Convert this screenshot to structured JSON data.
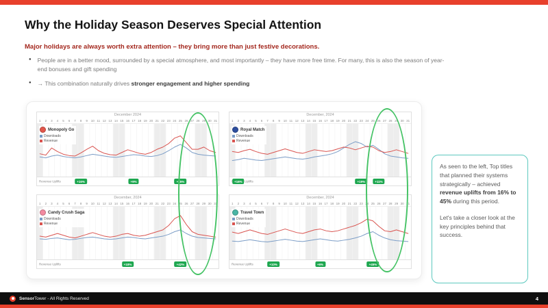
{
  "page": {
    "title": "Why the Holiday Season Deserves Special Attention",
    "subtitle": "Major holidays are always worth extra attention – they bring more than just festive decorations.",
    "bullets": {
      "b1": "People are in a better mood, surrounded by a special atmosphere, and most importantly – they have more free time. For many, this is also the season of year-end bonuses and gift spending",
      "b2_before": "→ This combination naturally drives ",
      "b2_bold": "stronger engagement and higher spending"
    }
  },
  "callout": {
    "p1_before": "As seen to the left, Top titles that planned their systems strategically – achieved ",
    "p1_bold": "revenue uplifts from 16% to 45%",
    "p1_after": " during this period.",
    "p2": "Let's take a closer look at the key principles behind that success."
  },
  "footer": {
    "brand_bold": "Sensor",
    "brand_rest": "Tower - All Rights Reserved",
    "page_number": "4"
  },
  "colors": {
    "accent_red": "#E8402C",
    "badge_green": "#1EA750",
    "oval_green": "#46C366",
    "callout_teal": "#5BC8BE",
    "downloads_blue": "#7A9CC6",
    "revenue_red": "#D9534F"
  },
  "chart_data": [
    {
      "type": "line",
      "app": "Monopoly Go",
      "icon_color": "#E2574C",
      "month": "December 2024",
      "footer_label": "Revenue Uplifts",
      "x_days": [
        1,
        2,
        3,
        4,
        5,
        6,
        7,
        8,
        9,
        10,
        11,
        12,
        13,
        14,
        15,
        16,
        17,
        18,
        19,
        20,
        21,
        22,
        23,
        24,
        25,
        26,
        27,
        28,
        29,
        30,
        31
      ],
      "weekend_days": [
        1,
        7,
        8,
        14,
        15,
        21,
        22,
        28,
        29
      ],
      "ylim": [
        0,
        100
      ],
      "series": [
        {
          "name": "Downloads",
          "color": "#7A9CC6",
          "values": [
            38,
            36,
            40,
            42,
            39,
            37,
            36,
            38,
            41,
            44,
            42,
            40,
            38,
            37,
            39,
            41,
            43,
            42,
            40,
            39,
            41,
            45,
            52,
            60,
            66,
            58,
            48,
            44,
            42,
            41,
            40
          ]
        },
        {
          "name": "Revenue",
          "color": "#D9534F",
          "values": [
            45,
            42,
            58,
            50,
            44,
            41,
            40,
            47,
            55,
            62,
            52,
            46,
            43,
            42,
            48,
            54,
            50,
            46,
            44,
            48,
            55,
            60,
            68,
            80,
            85,
            70,
            55,
            55,
            60,
            52,
            48
          ]
        }
      ],
      "badges": [
        {
          "label": "+16%",
          "day": 8
        },
        {
          "label": "+9%",
          "day": 17
        },
        {
          "label": "+45%",
          "day": 25
        }
      ]
    },
    {
      "type": "line",
      "app": "Royal Match",
      "icon_color": "#2E4E9E",
      "month": "December, 2024",
      "footer_label": "Revenue Uplifts",
      "x_days": [
        1,
        2,
        3,
        4,
        5,
        6,
        7,
        8,
        9,
        10,
        11,
        12,
        13,
        14,
        15,
        16,
        17,
        18,
        19,
        20,
        21,
        22,
        23,
        24,
        25,
        26,
        27,
        28,
        29,
        30,
        31
      ],
      "weekend_days": [
        1,
        7,
        8,
        14,
        15,
        21,
        22,
        28,
        29
      ],
      "ylim": [
        0,
        100
      ],
      "series": [
        {
          "name": "Downloads",
          "color": "#7A9CC6",
          "values": [
            30,
            32,
            35,
            33,
            31,
            30,
            32,
            34,
            36,
            38,
            36,
            34,
            33,
            35,
            38,
            40,
            42,
            45,
            50,
            58,
            66,
            72,
            68,
            60,
            64,
            55,
            45,
            40,
            38,
            36,
            35
          ]
        },
        {
          "name": "Revenue",
          "color": "#D9534F",
          "values": [
            50,
            48,
            52,
            55,
            50,
            46,
            44,
            48,
            52,
            56,
            52,
            48,
            46,
            50,
            54,
            52,
            50,
            52,
            56,
            60,
            58,
            54,
            58,
            62,
            60,
            52,
            48,
            50,
            54,
            50,
            46
          ]
        }
      ],
      "badges": [
        {
          "label": "+16%",
          "day": 2
        },
        {
          "label": "+19%",
          "day": 23
        },
        {
          "label": "+11%",
          "day": 26
        }
      ]
    },
    {
      "type": "line",
      "app": "Candy Crush Saga",
      "icon_color": "#F28AA0",
      "month": "December, 2024",
      "footer_label": "Revenue Uplifts",
      "x_days": [
        1,
        2,
        3,
        4,
        5,
        6,
        7,
        8,
        9,
        10,
        11,
        12,
        13,
        14,
        15,
        16,
        17,
        18,
        19,
        20,
        21,
        22,
        23,
        24,
        25,
        26,
        27,
        28,
        29,
        30,
        31
      ],
      "weekend_days": [
        1,
        7,
        8,
        14,
        15,
        21,
        22,
        28,
        29
      ],
      "ylim": [
        0,
        100
      ],
      "series": [
        {
          "name": "Downloads",
          "color": "#7A9CC6",
          "values": [
            40,
            39,
            41,
            42,
            40,
            38,
            39,
            41,
            43,
            44,
            42,
            40,
            39,
            40,
            42,
            44,
            43,
            41,
            40,
            42,
            44,
            46,
            50,
            56,
            60,
            52,
            46,
            43,
            42,
            41,
            40
          ]
        },
        {
          "name": "Revenue",
          "color": "#D9534F",
          "values": [
            46,
            44,
            48,
            52,
            48,
            44,
            42,
            46,
            50,
            54,
            50,
            46,
            44,
            46,
            50,
            52,
            48,
            46,
            48,
            52,
            56,
            60,
            70,
            85,
            92,
            72,
            56,
            50,
            48,
            46,
            44
          ]
        }
      ],
      "badges": [
        {
          "label": "+18%",
          "day": 16
        },
        {
          "label": "+42%",
          "day": 25
        }
      ]
    },
    {
      "type": "line",
      "app": "Travel Town",
      "icon_color": "#49B5A5",
      "month": "December, 2024",
      "footer_label": "Revenue Uplifts",
      "x_days": [
        1,
        2,
        3,
        4,
        5,
        6,
        7,
        8,
        9,
        10,
        11,
        12,
        13,
        14,
        15,
        16,
        17,
        18,
        19,
        20,
        21,
        22,
        23,
        24,
        25,
        26,
        27,
        28,
        29,
        30,
        31
      ],
      "weekend_days": [
        1,
        7,
        8,
        14,
        15,
        21,
        22,
        28,
        29
      ],
      "ylim": [
        0,
        100
      ],
      "series": [
        {
          "name": "Downloads",
          "color": "#7A9CC6",
          "values": [
            35,
            34,
            36,
            38,
            36,
            34,
            33,
            35,
            37,
            39,
            37,
            35,
            34,
            36,
            38,
            40,
            38,
            36,
            35,
            37,
            39,
            42,
            46,
            52,
            56,
            48,
            42,
            38,
            36,
            35,
            34
          ]
        },
        {
          "name": "Revenue",
          "color": "#D9534F",
          "values": [
            55,
            52,
            56,
            60,
            56,
            52,
            50,
            54,
            58,
            62,
            58,
            54,
            52,
            56,
            60,
            62,
            58,
            56,
            58,
            62,
            66,
            70,
            76,
            84,
            80,
            68,
            58,
            56,
            60,
            56,
            52
          ]
        }
      ],
      "badges": [
        {
          "label": "+10%",
          "day": 8
        },
        {
          "label": "+6%",
          "day": 16
        },
        {
          "label": "+45%",
          "day": 25
        }
      ]
    }
  ]
}
